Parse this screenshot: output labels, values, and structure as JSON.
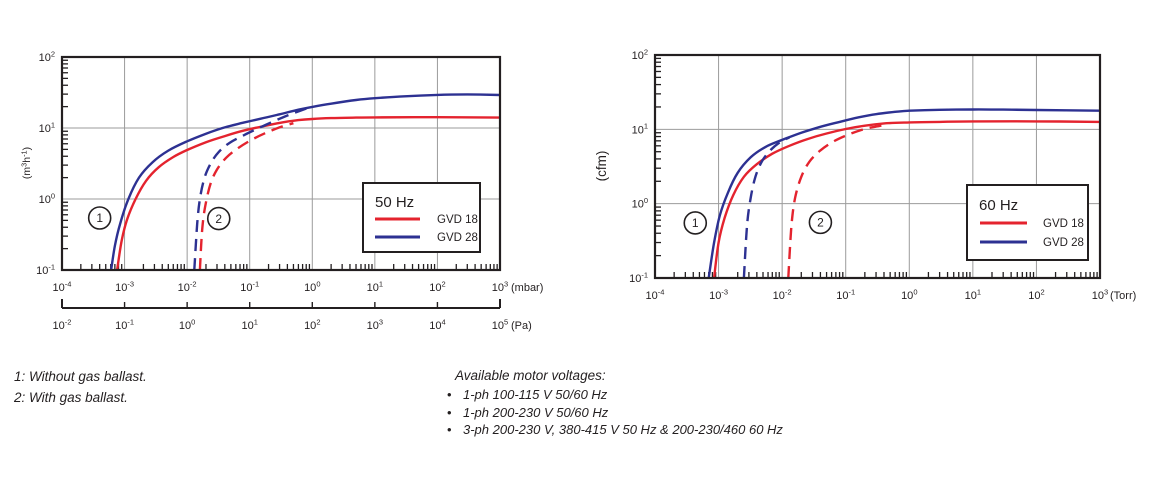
{
  "page": {
    "background": "#ffffff"
  },
  "colors": {
    "gvd18": "#e4232e",
    "gvd28": "#2d3192",
    "grid": "#9b9b9b",
    "axis": "#231f20",
    "text": "#231f20"
  },
  "footnotes": {
    "items": [
      "1: Without gas ballast.",
      "2: With gas ballast."
    ]
  },
  "motor_voltages": {
    "title": "Available motor voltages:",
    "items": [
      "1-ph 100-115 V 50/60 Hz",
      "1-ph 200-230 V 50/60 Hz",
      "3-ph 200-230 V, 380-415 V 50 Hz & 200-230/460 60 Hz"
    ]
  },
  "chart_data": [
    {
      "id": "chart-50hz",
      "type": "line",
      "title": "",
      "x_axis": {
        "unit": "(mbar)",
        "min_exp": -4,
        "max_exp": 3,
        "scale": "log"
      },
      "x_axis_secondary": {
        "unit": "(Pa)",
        "min_exp": -2,
        "max_exp": 5,
        "scale": "log"
      },
      "y_axis": {
        "unit": "(m³h⁻¹)",
        "min_exp": -1,
        "max_exp": 2,
        "scale": "log",
        "unit_display": [
          {
            "t": "(m"
          },
          {
            "t": "3",
            "sup": true
          },
          {
            "t": "h"
          },
          {
            "t": "-1",
            "sup": true
          },
          {
            "t": ")"
          }
        ]
      },
      "legend": {
        "title": "50 Hz",
        "entries": [
          {
            "label": "GVD 18",
            "color": "#e4232e"
          },
          {
            "label": "GVD 28",
            "color": "#2d3192"
          }
        ]
      },
      "annotations": [
        {
          "label": "1",
          "x": 0.0004,
          "y": 0.54
        },
        {
          "label": "2",
          "x": 0.032,
          "y": 0.53
        }
      ],
      "series": [
        {
          "id": "gvd28-solid",
          "name": "GVD 28 without gas ballast",
          "color": "#2d3192",
          "style": "solid",
          "points": [
            [
              0.00061,
              0.1
            ],
            [
              0.0007,
              0.22
            ],
            [
              0.00085,
              0.45
            ],
            [
              0.00115,
              1.0
            ],
            [
              0.0017,
              2.0
            ],
            [
              0.0028,
              3.3
            ],
            [
              0.005,
              4.8
            ],
            [
              0.01,
              6.5
            ],
            [
              0.02,
              8.3
            ],
            [
              0.04,
              10.2
            ],
            [
              0.08,
              11.9
            ],
            [
              0.15,
              13.5
            ],
            [
              0.3,
              15.6
            ],
            [
              0.6,
              18.1
            ],
            [
              1,
              19.8
            ],
            [
              2,
              22
            ],
            [
              5,
              24.8
            ],
            [
              10,
              26.3
            ],
            [
              30,
              28
            ],
            [
              100,
              29.3
            ],
            [
              300,
              29.7
            ],
            [
              1000,
              29.2
            ]
          ]
        },
        {
          "id": "gvd18-solid",
          "name": "GVD 18 without gas ballast",
          "color": "#e4232e",
          "style": "solid",
          "points": [
            [
              0.00076,
              0.1
            ],
            [
              0.0009,
              0.26
            ],
            [
              0.0011,
              0.52
            ],
            [
              0.0015,
              1.0
            ],
            [
              0.0022,
              1.8
            ],
            [
              0.0035,
              2.8
            ],
            [
              0.006,
              3.9
            ],
            [
              0.01,
              4.9
            ],
            [
              0.02,
              6.3
            ],
            [
              0.04,
              7.7
            ],
            [
              0.08,
              9.2
            ],
            [
              0.15,
              10.4
            ],
            [
              0.3,
              11.8
            ],
            [
              0.6,
              12.9
            ],
            [
              1,
              13.4
            ],
            [
              2,
              13.8
            ],
            [
              5,
              14.0
            ],
            [
              10,
              14.1
            ],
            [
              100,
              14.2
            ],
            [
              1000,
              14.0
            ]
          ]
        },
        {
          "id": "gvd28-dashed",
          "name": "GVD 28 with gas ballast",
          "color": "#2d3192",
          "style": "dashed",
          "points": [
            [
              0.013,
              0.1
            ],
            [
              0.0145,
              0.45
            ],
            [
              0.016,
              1.0
            ],
            [
              0.019,
              2.0
            ],
            [
              0.024,
              3.2
            ],
            [
              0.032,
              4.6
            ],
            [
              0.048,
              6.2
            ],
            [
              0.08,
              7.9
            ],
            [
              0.14,
              10.0
            ],
            [
              0.24,
              12.4
            ],
            [
              0.4,
              15.0
            ],
            [
              0.65,
              17.6
            ],
            [
              0.85,
              19.2
            ]
          ]
        },
        {
          "id": "gvd18-dashed",
          "name": "GVD 18 with gas ballast",
          "color": "#e4232e",
          "style": "dashed",
          "points": [
            [
              0.016,
              0.1
            ],
            [
              0.0175,
              0.4
            ],
            [
              0.02,
              0.9
            ],
            [
              0.024,
              1.7
            ],
            [
              0.03,
              2.6
            ],
            [
              0.042,
              3.8
            ],
            [
              0.065,
              5.2
            ],
            [
              0.11,
              6.9
            ],
            [
              0.19,
              8.7
            ],
            [
              0.32,
              10.4
            ],
            [
              0.5,
              11.7
            ]
          ]
        }
      ]
    },
    {
      "id": "chart-60hz",
      "type": "line",
      "title": "",
      "x_axis": {
        "unit": "(Torr)",
        "min_exp": -4,
        "max_exp": 3,
        "scale": "log"
      },
      "y_axis": {
        "unit": "(cfm)",
        "min_exp": -1,
        "max_exp": 2,
        "scale": "log"
      },
      "legend": {
        "title": "60 Hz",
        "entries": [
          {
            "label": "GVD 18",
            "color": "#e4232e"
          },
          {
            "label": "GVD 28",
            "color": "#2d3192"
          }
        ]
      },
      "annotations": [
        {
          "label": "1",
          "x": 0.00043,
          "y": 0.55
        },
        {
          "label": "2",
          "x": 0.04,
          "y": 0.56
        }
      ],
      "series": [
        {
          "id": "gvd28-solid",
          "name": "GVD 28 without gas ballast",
          "color": "#2d3192",
          "style": "solid",
          "points": [
            [
              0.0007,
              0.1
            ],
            [
              0.00085,
              0.3
            ],
            [
              0.00105,
              0.7
            ],
            [
              0.0014,
              1.4
            ],
            [
              0.002,
              2.6
            ],
            [
              0.0032,
              4.2
            ],
            [
              0.0055,
              5.8
            ],
            [
              0.01,
              7.2
            ],
            [
              0.02,
              9.0
            ],
            [
              0.04,
              10.8
            ],
            [
              0.08,
              12.6
            ],
            [
              0.16,
              14.5
            ],
            [
              0.3,
              16.0
            ],
            [
              0.6,
              17.2
            ],
            [
              1,
              17.8
            ],
            [
              3,
              18.3
            ],
            [
              10,
              18.5
            ],
            [
              30,
              18.4
            ],
            [
              100,
              18.2
            ],
            [
              1000,
              17.8
            ]
          ]
        },
        {
          "id": "gvd18-solid",
          "name": "GVD 18 without gas ballast",
          "color": "#e4232e",
          "style": "solid",
          "points": [
            [
              0.00085,
              0.1
            ],
            [
              0.001,
              0.3
            ],
            [
              0.00125,
              0.65
            ],
            [
              0.0017,
              1.3
            ],
            [
              0.0025,
              2.3
            ],
            [
              0.004,
              3.4
            ],
            [
              0.007,
              4.7
            ],
            [
              0.013,
              6.0
            ],
            [
              0.025,
              7.4
            ],
            [
              0.05,
              8.8
            ],
            [
              0.1,
              10.1
            ],
            [
              0.2,
              11.2
            ],
            [
              0.4,
              12.0
            ],
            [
              1,
              12.4
            ],
            [
              3,
              12.6
            ],
            [
              10,
              12.8
            ],
            [
              100,
              12.8
            ],
            [
              1000,
              12.6
            ]
          ]
        },
        {
          "id": "gvd28-dashed",
          "name": "GVD 28 with gas ballast",
          "color": "#2d3192",
          "style": "dashed",
          "points": [
            [
              0.0025,
              0.1
            ],
            [
              0.0028,
              0.5
            ],
            [
              0.0032,
              1.2
            ],
            [
              0.0038,
              2.3
            ],
            [
              0.0048,
              3.7
            ],
            [
              0.0065,
              5.2
            ],
            [
              0.009,
              6.6
            ],
            [
              0.013,
              7.8
            ]
          ]
        },
        {
          "id": "gvd18-dashed",
          "name": "GVD 18 with gas ballast",
          "color": "#e4232e",
          "style": "dashed",
          "points": [
            [
              0.0125,
              0.1
            ],
            [
              0.014,
              0.5
            ],
            [
              0.016,
              1.2
            ],
            [
              0.02,
              2.3
            ],
            [
              0.027,
              3.7
            ],
            [
              0.04,
              5.2
            ],
            [
              0.065,
              6.9
            ],
            [
              0.11,
              8.5
            ],
            [
              0.19,
              10.0
            ],
            [
              0.3,
              10.9
            ],
            [
              0.45,
              11.6
            ]
          ]
        }
      ]
    }
  ]
}
